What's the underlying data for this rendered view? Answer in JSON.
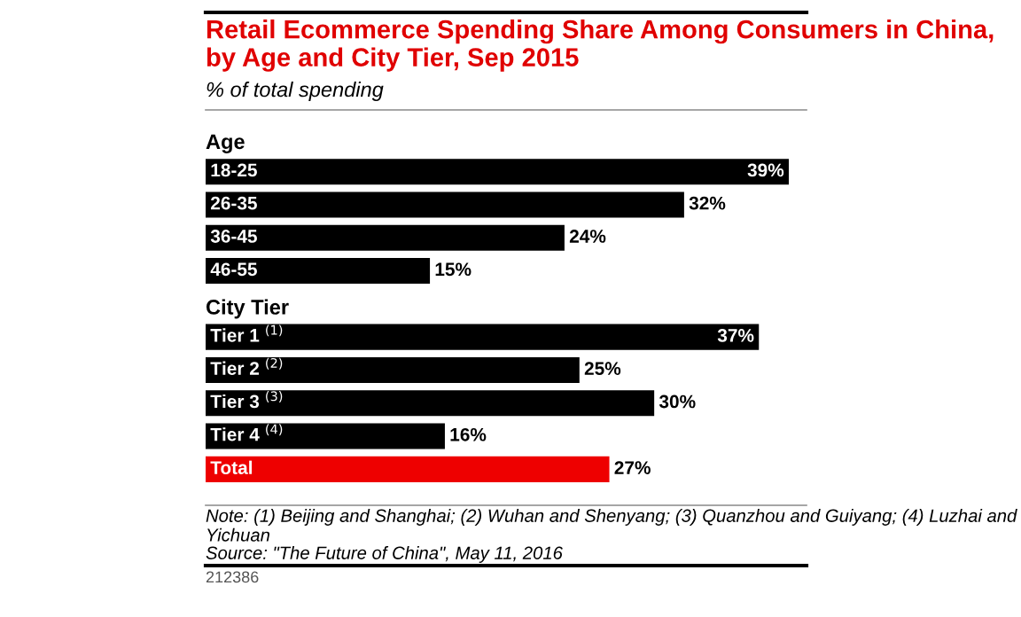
{
  "chart_data": {
    "type": "bar",
    "orientation": "horizontal",
    "title": "Retail Ecommerce Spending Share Among Consumers in China, by Age and City Tier, Sep 2015",
    "subtitle": "% of total spending",
    "categories": [
      "Age",
      "18-25",
      "26-35",
      "36-45",
      "46-55",
      "City Tier",
      "Tier 1 $^{(1)}$",
      "Tier 2 $^{(2)}$",
      "Tier 3 $^{(3)}$",
      "Tier 4 $^{(4)}$",
      "Total"
    ],
    "values": [
      null,
      39,
      32,
      24,
      15,
      null,
      37,
      25,
      30,
      16,
      27
    ],
    "value_labels": [
      null,
      "39%",
      "32%",
      "24%",
      "15%",
      null,
      "37%",
      "25%",
      "30%",
      "16%",
      "27%"
    ],
    "colors": [
      "#000000",
      "#000000",
      "#000000",
      "#000000",
      "#000000",
      "#000000",
      "#000000",
      "#000000",
      "#000000",
      "#000000",
      "#ee0000"
    ],
    "annotations": [
      "Note: (1) Beijing and Shanghai; (2) Wuhan and Shenyang; (3) Quanzhou and Guiyang; (4) Luzhai and Yichuan",
      "Source: \"The Future of China\", May 11, 2016",
      "212386"
    ],
    "legend": false
  }
}
